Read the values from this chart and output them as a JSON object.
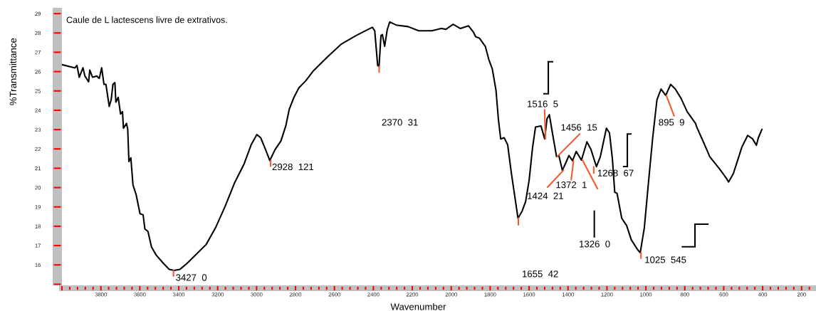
{
  "chart_data": {
    "type": "line",
    "title": "Caule de L lactescens livre de extrativos.",
    "xlabel": "Wavenumber",
    "ylabel": "%Transmittance",
    "x": [
      4000,
      3933,
      3923,
      3911,
      3892,
      3882,
      3863,
      3857,
      3843,
      3821,
      3808,
      3796,
      3784,
      3774,
      3757,
      3747,
      3738,
      3728,
      3723,
      3711,
      3699,
      3689,
      3684,
      3668,
      3662,
      3656,
      3646,
      3635,
      3619,
      3599,
      3583,
      3574,
      3558,
      3540,
      3516,
      3479,
      3449,
      3424,
      3394,
      3357,
      3308,
      3259,
      3211,
      3162,
      3113,
      3064,
      3028,
      2999,
      2979,
      2954,
      2932,
      2905,
      2875,
      2850,
      2832,
      2808,
      2783,
      2747,
      2710,
      2637,
      2564,
      2490,
      2442,
      2405,
      2393,
      2378,
      2371,
      2361,
      2354,
      2342,
      2329,
      2316,
      2283,
      2222,
      2167,
      2100,
      2051,
      2027,
      1990,
      1953,
      1911,
      1886,
      1874,
      1856,
      1825,
      1807,
      1789,
      1770,
      1758,
      1746,
      1728,
      1710,
      1691,
      1673,
      1657,
      1636,
      1618,
      1600,
      1582,
      1567,
      1539,
      1520,
      1508,
      1496,
      1478,
      1459,
      1447,
      1429,
      1411,
      1395,
      1377,
      1358,
      1331,
      1303,
      1282,
      1254,
      1234,
      1203,
      1187,
      1172,
      1160,
      1148,
      1124,
      1099,
      1075,
      1044,
      1029,
      1008,
      989,
      965,
      943,
      922,
      898,
      873,
      849,
      819,
      788,
      745,
      739,
      709,
      685,
      672,
      623,
      587,
      575,
      550,
      507,
      477,
      452,
      432,
      422,
      404
    ],
    "series": [
      {
        "color": "#000000",
        "values": [
          26.36,
          26.19,
          26.32,
          25.71,
          26.2,
          25.77,
          25.47,
          26.08,
          25.71,
          25.77,
          25.65,
          26.2,
          25.34,
          25.34,
          24.2,
          24.55,
          25.34,
          25.43,
          24.42,
          24.67,
          23.81,
          23.93,
          23.07,
          23.32,
          23.01,
          21.35,
          21.54,
          20.13,
          19.64,
          18.65,
          18.59,
          17.86,
          17.73,
          16.93,
          16.51,
          16.08,
          15.77,
          15.71,
          15.77,
          16.08,
          16.57,
          17.06,
          17.92,
          19.02,
          20.25,
          21.23,
          22.21,
          22.74,
          22.58,
          21.97,
          21.4,
          21.97,
          22.41,
          23.19,
          24.06,
          24.67,
          25.16,
          25.53,
          26.02,
          26.75,
          27.43,
          27.86,
          28.11,
          28.29,
          28.11,
          26.32,
          26.26,
          27.86,
          27.92,
          27.31,
          28.16,
          28.57,
          28.41,
          28.33,
          28.11,
          28.11,
          28.23,
          28.19,
          28.45,
          28.23,
          28.37,
          28.04,
          27.8,
          27.74,
          27.31,
          26.63,
          26.14,
          25.03,
          23.56,
          22.52,
          22.58,
          22.21,
          20.74,
          19.51,
          18.41,
          18.78,
          19.27,
          20.37,
          22.09,
          23.13,
          23.19,
          22.52,
          23.56,
          23.77,
          22.7,
          21.6,
          21.66,
          20.89,
          21.29,
          21.66,
          21.39,
          21.87,
          21.42,
          22.37,
          21.97,
          21.08,
          21.6,
          23.07,
          22.83,
          21.48,
          19.76,
          19.7,
          18.41,
          18.04,
          17.3,
          16.81,
          16.63,
          17.92,
          20.01,
          22.58,
          24.55,
          25.1,
          24.77,
          25.34,
          25.1,
          24.61,
          23.93,
          23.32,
          23.14,
          22.46,
          21.91,
          21.6,
          20.98,
          20.49,
          20.29,
          20.74,
          22.09,
          22.7,
          22.52,
          22.19,
          22.58,
          23.01
        ]
      }
    ],
    "xlim": [
      4000,
      126
    ],
    "ylim": [
      14.94,
      29.3
    ],
    "xticks": [
      {
        "value": 4000,
        "label": null
      },
      3800,
      3600,
      3400,
      3200,
      3000,
      2800,
      2600,
      2400,
      2200,
      2000,
      1800,
      1600,
      1400,
      1200,
      1000,
      800,
      600,
      400,
      200
    ],
    "yticks": [
      {
        "value": 15,
        "label": null
      },
      16,
      17,
      18,
      19,
      20,
      21,
      22,
      23,
      24,
      25,
      26,
      27,
      28,
      29
    ],
    "annotations": [
      {
        "text": "3427  0",
        "x": 3427,
        "y": 15.71
      },
      {
        "text": "2928  121",
        "x": 2928,
        "y": 21.4
      },
      "2370  31",
      "1655  42",
      {
        "text": "1516  5",
        "x": 1516,
        "y": 22.52
      },
      {
        "text": "1456  15",
        "x": 1456,
        "y": 21.6
      },
      {
        "text": "1424  21",
        "x": 1424,
        "y": 20.89
      },
      {
        "text": "1372  1",
        "x": 1372,
        "y": 21.39
      },
      "1326  0",
      {
        "text": "1268  67",
        "x": 1268,
        "y": 21.08
      },
      {
        "text": "1025  545",
        "x": 1025,
        "y": 16.63
      },
      {
        "text": "895  9",
        "x": 895,
        "y": 24.77
      }
    ],
    "grid": false,
    "line_style": "solid",
    "marker": "none"
  }
}
